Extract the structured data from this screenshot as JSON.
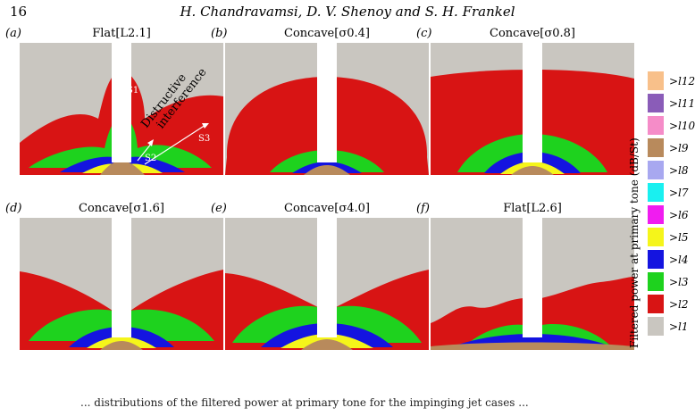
{
  "header": {
    "page_number": "16",
    "authors": "H. Chandravamsi, D. V. Shenoy and S. H. Frankel"
  },
  "panels": [
    {
      "label": "(a)",
      "title": "Flat[L2.1]"
    },
    {
      "label": "(b)",
      "title": "Concave[σ0.4]"
    },
    {
      "label": "(c)",
      "title": "Concave[σ0.8]"
    },
    {
      "label": "(d)",
      "title": "Concave[σ1.6]"
    },
    {
      "label": "(e)",
      "title": "Concave[σ4.0]"
    },
    {
      "label": "(f)",
      "title": "Flat[L2.6]"
    }
  ],
  "annotations": {
    "s1": "S1",
    "s2": "S2",
    "s3": "S3",
    "interference_line1": "Distructive",
    "interference_line2": "interference"
  },
  "colorbar": {
    "title": "Filtered power at primary tone (dB/St)",
    "levels": [
      {
        "label": ">l12",
        "color": "#f8c08a"
      },
      {
        "label": ">l11",
        "color": "#8a5cb8"
      },
      {
        "label": ">l10",
        "color": "#f58cc8"
      },
      {
        "label": ">l9",
        "color": "#b88a5c"
      },
      {
        "label": ">l8",
        "color": "#a8a8f0"
      },
      {
        "label": ">l7",
        "color": "#19f0f0"
      },
      {
        "label": ">l6",
        "color": "#f01cf0"
      },
      {
        "label": ">l5",
        "color": "#f5f51a"
      },
      {
        "label": ">l4",
        "color": "#1414e0"
      },
      {
        "label": ">l3",
        "color": "#1ed21e"
      },
      {
        "label": ">l2",
        "color": "#d81414"
      },
      {
        "label": ">l1",
        "color": "#c9c6c0"
      }
    ]
  },
  "caption": "... distributions of the filtered power at primary tone for the impinging jet cases ..."
}
